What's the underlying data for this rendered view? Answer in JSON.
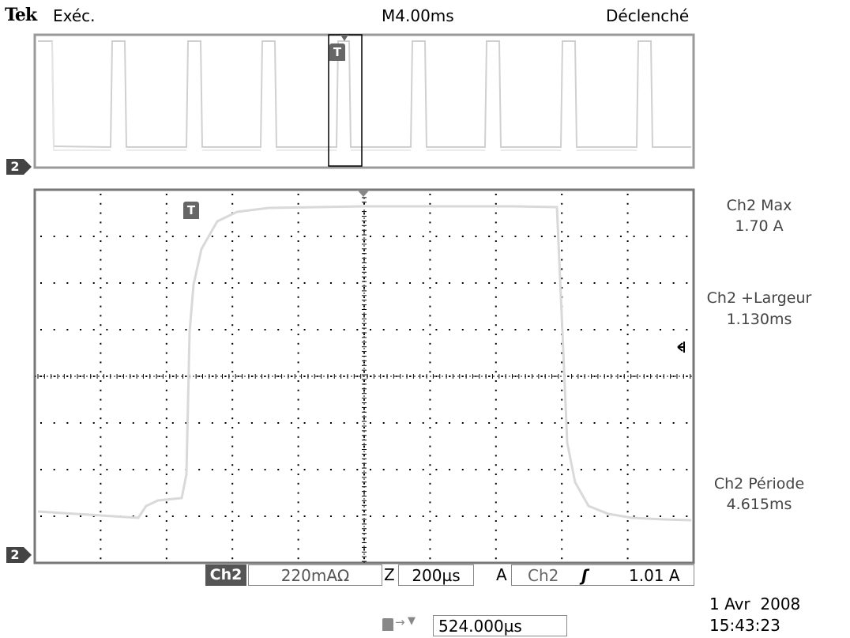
{
  "header": {
    "brand": "Tek",
    "run_state": "Exéc.",
    "timebase": "M4.00ms",
    "trigger_status": "Déclenché"
  },
  "measurements": [
    {
      "label": "Ch2 Max",
      "value": "1.70 A"
    },
    {
      "label": "Ch2 +Largeur",
      "value": "1.130ms"
    },
    {
      "label": "Ch2 Période",
      "value": "4.615ms"
    }
  ],
  "footer": {
    "channel": "Ch2",
    "scale": "220mAΩ",
    "zoom_label": "Z",
    "zoom_timebase": "200µs",
    "trigger_mode": "A",
    "trigger_source": "Ch2",
    "trigger_slope_glyph": "ʃ",
    "trigger_level": "1.01 A",
    "trigger_position": "524.000µs",
    "date": "1 Avr  2008",
    "time": "15:43:23"
  },
  "markers": {
    "channel_marker": "2",
    "trigger_marker": "T"
  },
  "colors": {
    "trace": "#d9d9d9",
    "grid": "#000000",
    "frame": "#9a9a9a",
    "text_gray": "#444444"
  }
}
